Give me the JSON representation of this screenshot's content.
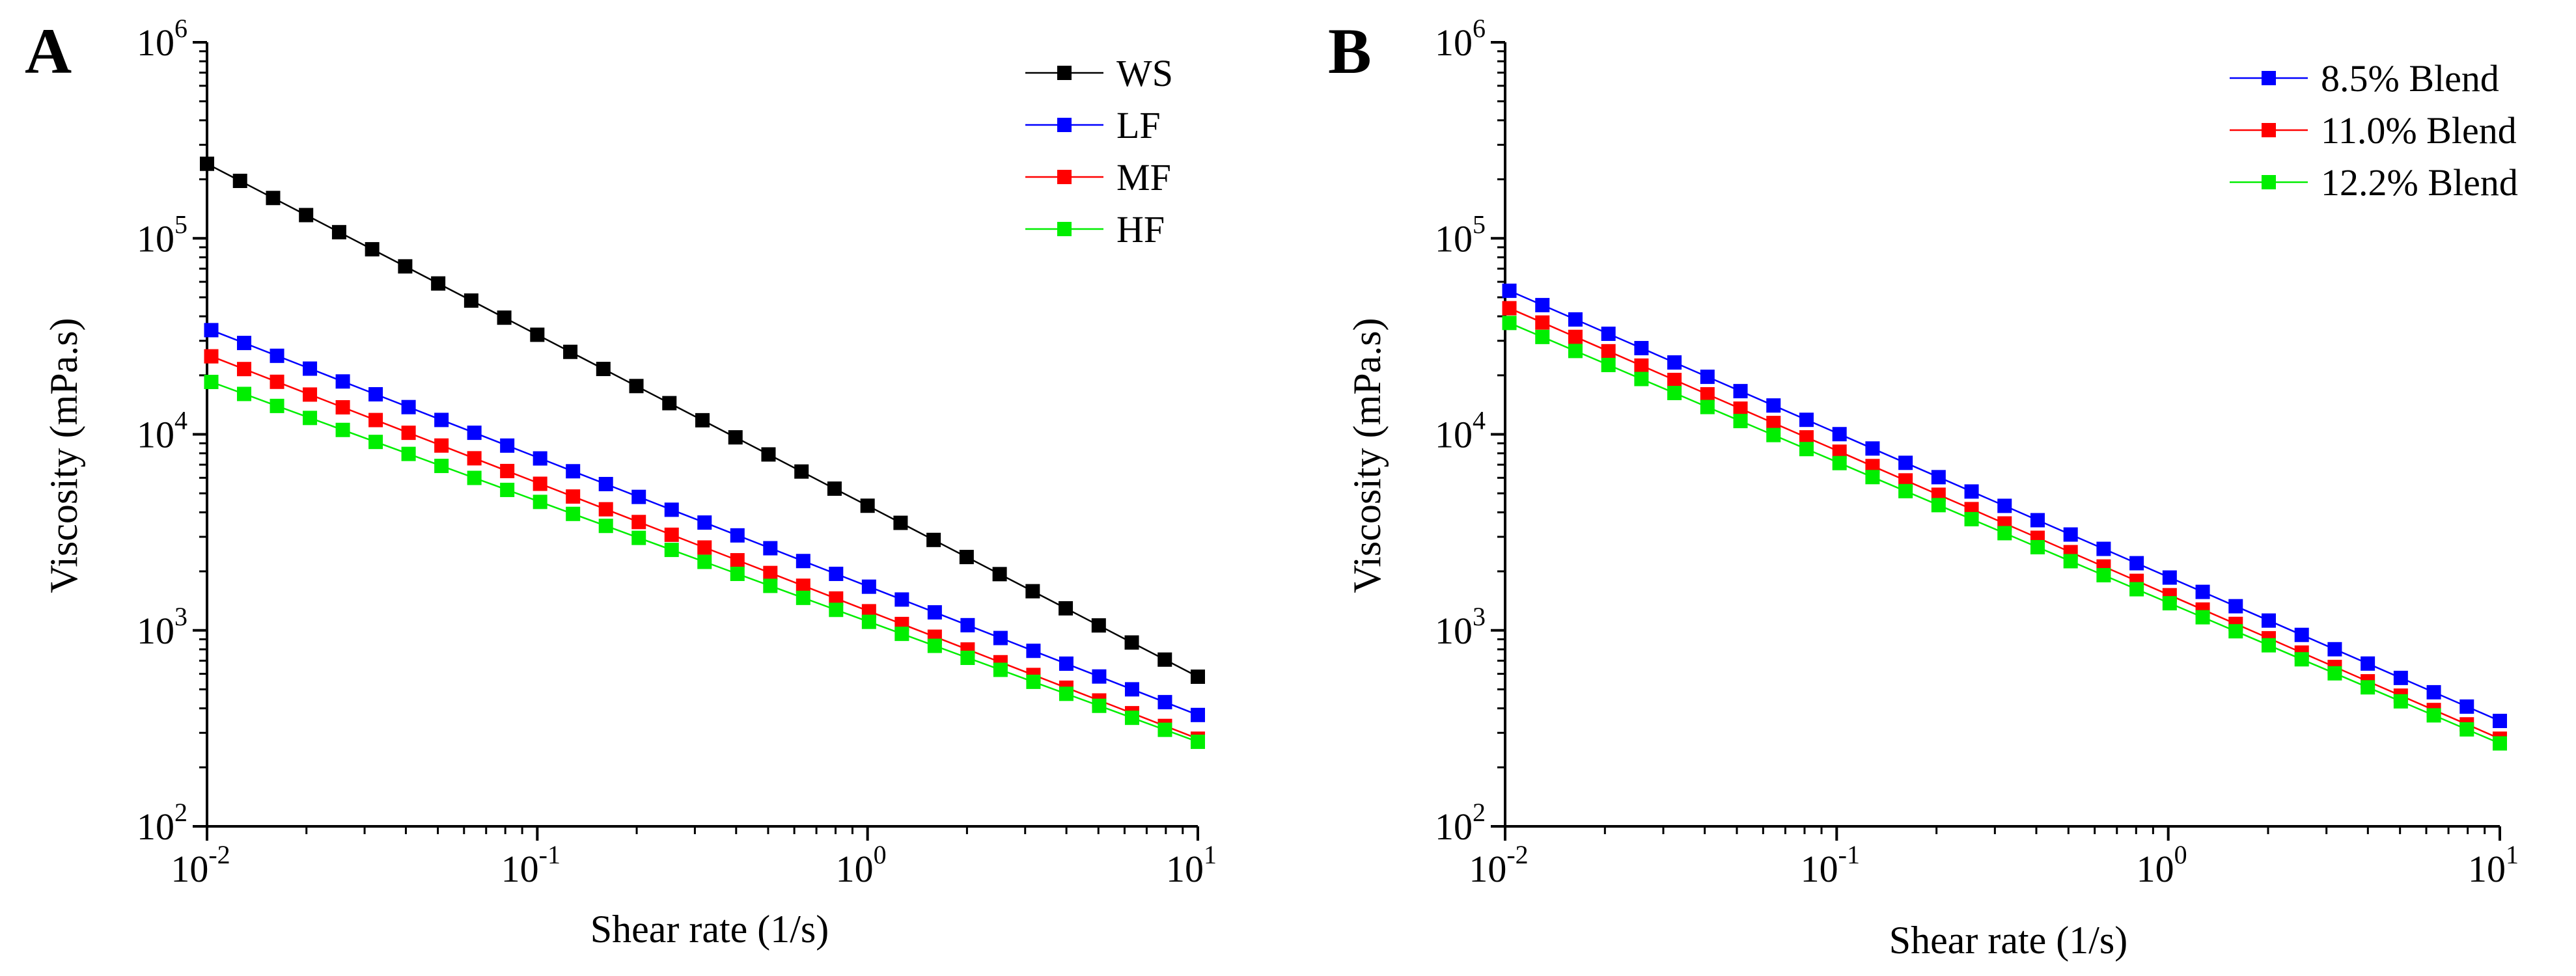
{
  "chart_data": [
    {
      "type": "line",
      "panel_label": "A",
      "xscale": "log",
      "yscale": "log",
      "xlim": [
        0.01,
        10
      ],
      "ylim": [
        100,
        1000000
      ],
      "xlabel": "Shear rate (1/s)",
      "ylabel": "Viscosity (mPa.s)",
      "legend_position": "top-right",
      "xticks": [
        {
          "value": 0.01,
          "base": "10",
          "exp": "-2"
        },
        {
          "value": 0.1,
          "base": "10",
          "exp": "-1"
        },
        {
          "value": 1,
          "base": "10",
          "exp": "0"
        },
        {
          "value": 10,
          "base": "10",
          "exp": "1"
        }
      ],
      "yticks": [
        {
          "value": 100,
          "base": "10",
          "exp": "2"
        },
        {
          "value": 1000,
          "base": "10",
          "exp": "3"
        },
        {
          "value": 10000,
          "base": "10",
          "exp": "4"
        },
        {
          "value": 100000,
          "base": "10",
          "exp": "5"
        },
        {
          "value": 1000000,
          "base": "10",
          "exp": "6"
        }
      ],
      "series": [
        {
          "name": "WS",
          "color": "#000000",
          "points": 31,
          "x_start": 0.01,
          "x_end": 10,
          "y_start": 240000,
          "y_end": 580
        },
        {
          "name": "LF",
          "color": "#0000ff",
          "points": 31,
          "x_start": 0.0103,
          "x_end": 10,
          "y_start": 34000,
          "y_end": 370
        },
        {
          "name": "MF",
          "color": "#ff0000",
          "points": 31,
          "x_start": 0.0103,
          "x_end": 10,
          "y_start": 25000,
          "y_end": 280
        },
        {
          "name": "HF",
          "color": "#00ee00",
          "points": 31,
          "x_start": 0.0103,
          "x_end": 10,
          "y_start": 18500,
          "y_end": 270
        }
      ]
    },
    {
      "type": "line",
      "panel_label": "B",
      "xscale": "log",
      "yscale": "log",
      "xlim": [
        0.01,
        10
      ],
      "ylim": [
        100,
        1000000
      ],
      "xlabel": "Shear rate (1/s)",
      "ylabel": "Viscosity (mPa.s)",
      "legend_position": "top-right",
      "xticks": [
        {
          "value": 0.01,
          "base": "10",
          "exp": "-2"
        },
        {
          "value": 0.1,
          "base": "10",
          "exp": "-1"
        },
        {
          "value": 1,
          "base": "10",
          "exp": "0"
        },
        {
          "value": 10,
          "base": "10",
          "exp": "1"
        }
      ],
      "yticks": [
        {
          "value": 100,
          "base": "10",
          "exp": "2"
        },
        {
          "value": 1000,
          "base": "10",
          "exp": "3"
        },
        {
          "value": 10000,
          "base": "10",
          "exp": "4"
        },
        {
          "value": 100000,
          "base": "10",
          "exp": "5"
        },
        {
          "value": 1000000,
          "base": "10",
          "exp": "6"
        }
      ],
      "series": [
        {
          "name": "8.5% Blend",
          "color": "#0000ff",
          "points": 31,
          "x_start": 0.0103,
          "x_end": 10,
          "y_start": 54000,
          "y_end": 345
        },
        {
          "name": "11.0% Blend",
          "color": "#ff0000",
          "points": 31,
          "x_start": 0.0103,
          "x_end": 10,
          "y_start": 44000,
          "y_end": 280
        },
        {
          "name": "12.2% Blend",
          "color": "#00ee00",
          "points": 31,
          "x_start": 0.0103,
          "x_end": 10,
          "y_start": 37000,
          "y_end": 265
        }
      ]
    }
  ]
}
